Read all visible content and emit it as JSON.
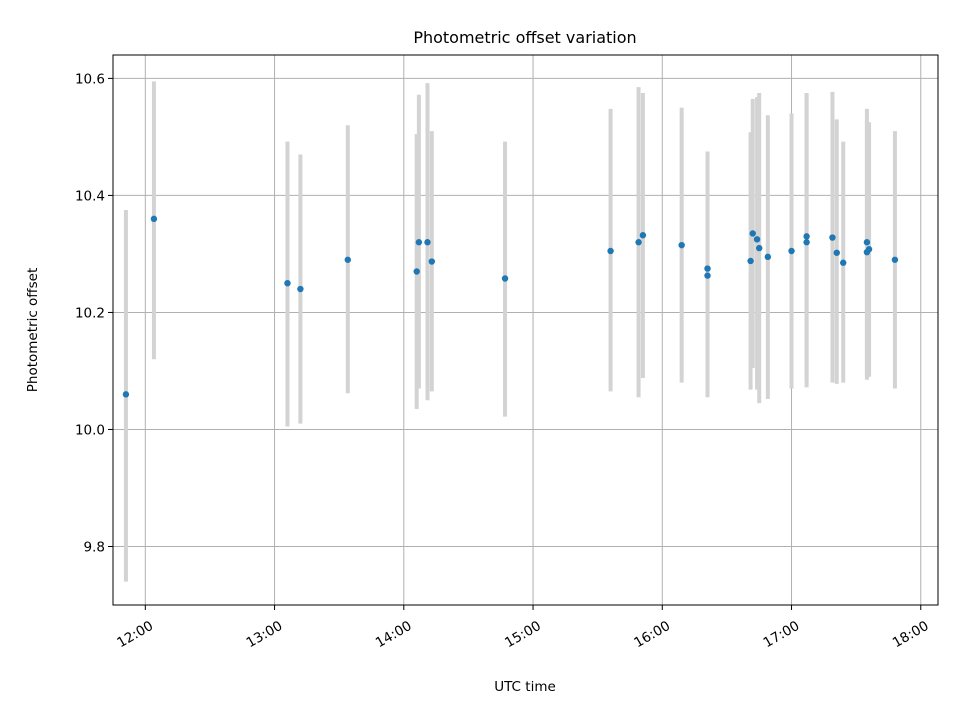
{
  "chart_data": {
    "type": "scatter",
    "title": "Photometric offset variation",
    "xlabel": "UTC time",
    "ylabel": "Photometric offset",
    "xlim": [
      "11:45",
      "18:08"
    ],
    "ylim": [
      9.7,
      10.64
    ],
    "grid": true,
    "x_ticks": [
      "12:00",
      "13:00",
      "14:00",
      "15:00",
      "16:00",
      "17:00",
      "18:00"
    ],
    "y_ticks": [
      9.8,
      10.0,
      10.2,
      10.4,
      10.6
    ],
    "y_tick_labels": [
      "9.8",
      "10.0",
      "10.2",
      "10.4",
      "10.6"
    ],
    "colors": {
      "point": "#1f77b4",
      "errorbar": "#d3d3d3"
    },
    "points": [
      {
        "x": "11:51",
        "y": 10.06,
        "ylow": 9.74,
        "yhigh": 10.375
      },
      {
        "x": "12:04",
        "y": 10.36,
        "ylow": 10.12,
        "yhigh": 10.595
      },
      {
        "x": "13:06",
        "y": 10.25,
        "ylow": 10.005,
        "yhigh": 10.492
      },
      {
        "x": "13:12",
        "y": 10.24,
        "ylow": 10.01,
        "yhigh": 10.47
      },
      {
        "x": "13:34",
        "y": 10.29,
        "ylow": 10.062,
        "yhigh": 10.52
      },
      {
        "x": "14:06",
        "y": 10.27,
        "ylow": 10.035,
        "yhigh": 10.505
      },
      {
        "x": "14:07",
        "y": 10.32,
        "ylow": 10.07,
        "yhigh": 10.572
      },
      {
        "x": "14:11",
        "y": 10.32,
        "ylow": 10.05,
        "yhigh": 10.592
      },
      {
        "x": "14:13",
        "y": 10.287,
        "ylow": 10.065,
        "yhigh": 10.51
      },
      {
        "x": "14:47",
        "y": 10.258,
        "ylow": 10.022,
        "yhigh": 10.492
      },
      {
        "x": "15:36",
        "y": 10.305,
        "ylow": 10.065,
        "yhigh": 10.548
      },
      {
        "x": "15:49",
        "y": 10.32,
        "ylow": 10.055,
        "yhigh": 10.585
      },
      {
        "x": "15:51",
        "y": 10.332,
        "ylow": 10.088,
        "yhigh": 10.575
      },
      {
        "x": "16:09",
        "y": 10.315,
        "ylow": 10.08,
        "yhigh": 10.55
      },
      {
        "x": "16:21",
        "y": 10.275,
        "ylow": 10.06,
        "yhigh": 10.475
      },
      {
        "x": "16:21",
        "y": 10.263,
        "ylow": 10.055,
        "yhigh": 10.468
      },
      {
        "x": "16:41",
        "y": 10.288,
        "ylow": 10.068,
        "yhigh": 10.508
      },
      {
        "x": "16:42",
        "y": 10.335,
        "ylow": 10.105,
        "yhigh": 10.565
      },
      {
        "x": "16:44",
        "y": 10.325,
        "ylow": 10.068,
        "yhigh": 10.568
      },
      {
        "x": "16:45",
        "y": 10.31,
        "ylow": 10.045,
        "yhigh": 10.575
      },
      {
        "x": "16:49",
        "y": 10.295,
        "ylow": 10.052,
        "yhigh": 10.537
      },
      {
        "x": "17:00",
        "y": 10.305,
        "ylow": 10.07,
        "yhigh": 10.54
      },
      {
        "x": "17:07",
        "y": 10.33,
        "ylow": 10.085,
        "yhigh": 10.575
      },
      {
        "x": "17:07",
        "y": 10.32,
        "ylow": 10.072,
        "yhigh": 10.572
      },
      {
        "x": "17:19",
        "y": 10.328,
        "ylow": 10.08,
        "yhigh": 10.577
      },
      {
        "x": "17:21",
        "y": 10.302,
        "ylow": 10.078,
        "yhigh": 10.53
      },
      {
        "x": "17:24",
        "y": 10.285,
        "ylow": 10.08,
        "yhigh": 10.492
      },
      {
        "x": "17:35",
        "y": 10.32,
        "ylow": 10.09,
        "yhigh": 10.548
      },
      {
        "x": "17:35",
        "y": 10.303,
        "ylow": 10.085,
        "yhigh": 10.528
      },
      {
        "x": "17:36",
        "y": 10.308,
        "ylow": 10.09,
        "yhigh": 10.525
      },
      {
        "x": "17:48",
        "y": 10.29,
        "ylow": 10.07,
        "yhigh": 10.51
      }
    ]
  }
}
